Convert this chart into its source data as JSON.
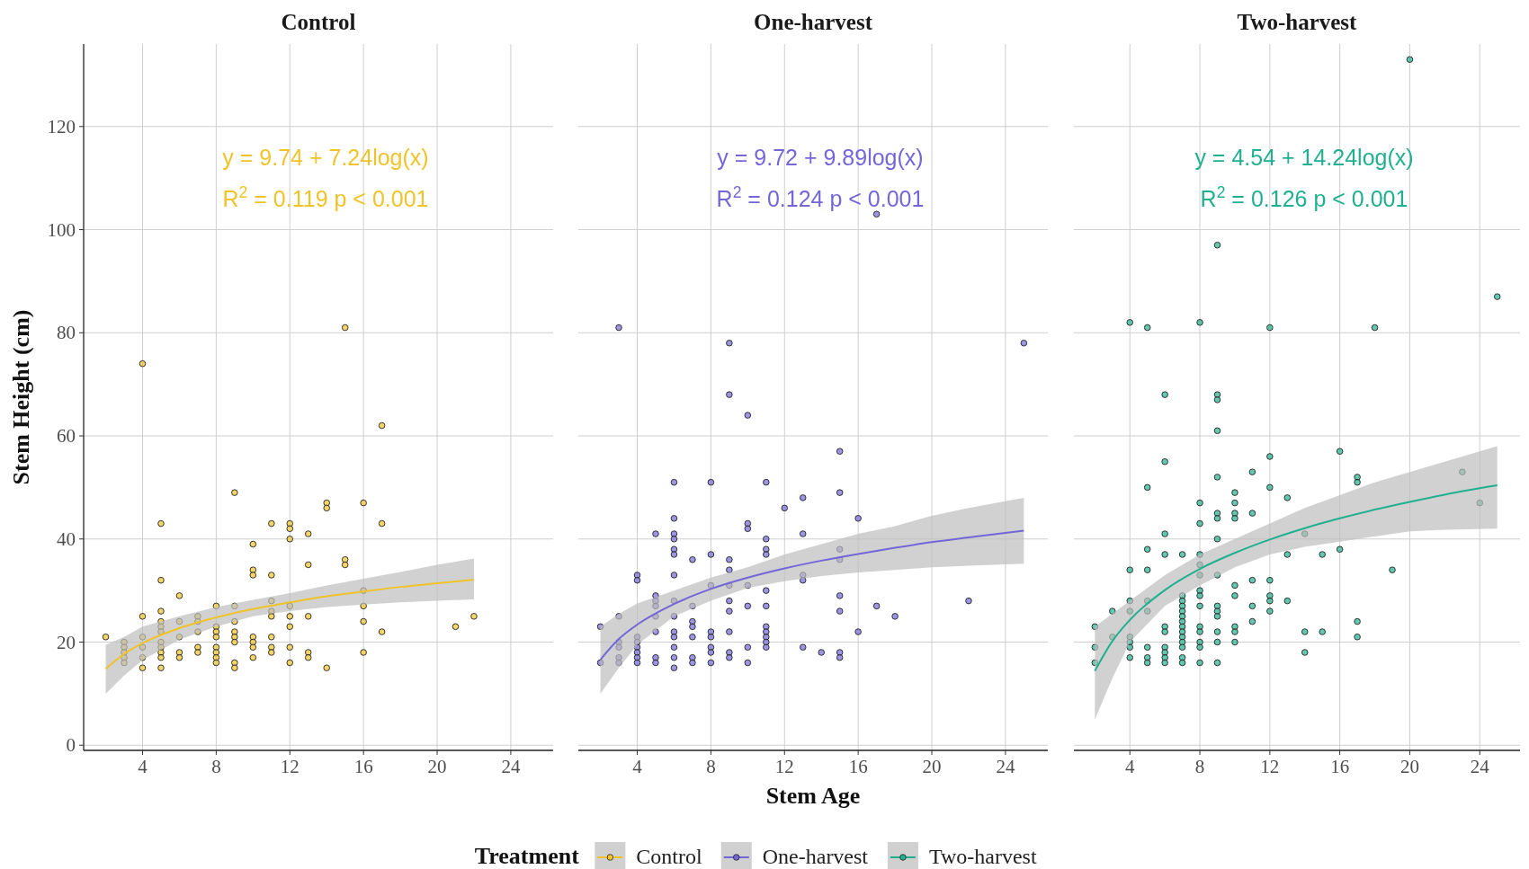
{
  "chart_data": [
    {
      "type": "scatter",
      "title": "Control",
      "ylabel": "Stem Height (cm)",
      "xlim": [
        0.8,
        26.3
      ],
      "xticks": [
        4,
        8,
        12,
        16,
        20,
        24
      ],
      "ylim": [
        -1,
        136
      ],
      "yticks": [
        0,
        20,
        40,
        60,
        80,
        100,
        120
      ],
      "grid": true,
      "marker": "circle",
      "legend": "bottom",
      "legend_title": "Treatment",
      "annotations": [
        "y = 9.74 + 7.24log(x)",
        "R$^{2}$ = 0.119 p < 0.001"
      ],
      "series": [
        {
          "name": "Control",
          "color": "#f0c32a",
          "x": [
            2,
            3,
            3,
            3,
            3,
            3,
            4,
            4,
            4,
            4,
            4,
            4,
            5,
            5,
            5,
            5,
            5,
            5,
            5,
            5,
            5,
            5,
            5,
            6,
            6,
            6,
            6,
            6,
            7,
            7,
            7,
            7,
            7,
            8,
            8,
            8,
            8,
            8,
            8,
            8,
            8,
            9,
            9,
            9,
            9,
            9,
            9,
            9,
            9,
            10,
            10,
            10,
            10,
            10,
            10,
            10,
            11,
            11,
            11,
            11,
            11,
            11,
            11,
            11,
            12,
            12,
            12,
            12,
            12,
            12,
            12,
            12,
            13,
            13,
            13,
            13,
            13,
            14,
            14,
            14,
            15,
            15,
            15,
            16,
            16,
            16,
            16,
            16,
            17,
            17,
            17,
            21,
            22
          ],
          "values": [
            21,
            20,
            19,
            18,
            17,
            16,
            74,
            25,
            21,
            19,
            17,
            15,
            43,
            32,
            26,
            24,
            23,
            22,
            20,
            19,
            18,
            17,
            15,
            29,
            24,
            21,
            18,
            17,
            25,
            24,
            22,
            19,
            18,
            27,
            23,
            22,
            21,
            19,
            18,
            17,
            16,
            49,
            27,
            24,
            22,
            21,
            20,
            16,
            15,
            39,
            34,
            33,
            21,
            20,
            19,
            17,
            43,
            33,
            28,
            26,
            25,
            21,
            19,
            18,
            43,
            42,
            40,
            27,
            25,
            23,
            19,
            16,
            41,
            35,
            25,
            18,
            17,
            47,
            46,
            15,
            81,
            36,
            35,
            47,
            30,
            27,
            24,
            18,
            62,
            43,
            22,
            23,
            25
          ]
        },
        {
          "type": "line",
          "marker": "none",
          "color": "#f0c32a",
          "x": [
            2,
            3,
            4,
            6,
            8,
            10,
            12,
            14,
            16,
            18,
            20,
            22
          ],
          "values": [
            14.8,
            17.7,
            19.8,
            22.7,
            24.8,
            26.4,
            27.7,
            28.9,
            29.8,
            30.7,
            31.4,
            32.1
          ],
          "lower": [
            10,
            13.5,
            16.5,
            20.5,
            23,
            25,
            26,
            26.8,
            27.3,
            27.7,
            28,
            28.3
          ],
          "upper": [
            19.5,
            21,
            23,
            25,
            26.8,
            28.2,
            29.5,
            31,
            32.3,
            33.6,
            35,
            36.2
          ]
        }
      ]
    },
    {
      "type": "scatter",
      "title": "One-harvest",
      "xlabel": "Stem Age",
      "xlim": [
        0.8,
        26.3
      ],
      "xticks": [
        4,
        8,
        12,
        16,
        20,
        24
      ],
      "ylim": [
        -1,
        136
      ],
      "yticks": [
        0,
        20,
        40,
        60,
        80,
        100,
        120
      ],
      "tick_labels": "x",
      "grid": true,
      "marker": "circle",
      "annotations": [
        "y = 9.72 + 9.89log(x)",
        "R$^{2}$ = 0.124 p < 0.001"
      ],
      "series": [
        {
          "name": "One-harvest",
          "color": "#7466d9",
          "x": [
            2,
            2,
            3,
            3,
            3,
            3,
            3,
            3,
            4,
            4,
            4,
            4,
            4,
            4,
            4,
            4,
            5,
            5,
            5,
            5,
            5,
            5,
            5,
            5,
            6,
            6,
            6,
            6,
            6,
            6,
            6,
            6,
            6,
            6,
            6,
            6,
            6,
            6,
            7,
            7,
            7,
            7,
            7,
            7,
            7,
            8,
            8,
            8,
            8,
            8,
            8,
            8,
            8,
            9,
            9,
            9,
            9,
            9,
            9,
            9,
            9,
            9,
            9,
            10,
            10,
            10,
            10,
            10,
            10,
            10,
            11,
            11,
            11,
            11,
            11,
            11,
            11,
            11,
            11,
            11,
            11,
            12,
            13,
            13,
            13,
            13,
            13,
            14,
            15,
            15,
            15,
            15,
            15,
            15,
            15,
            15,
            16,
            16,
            17,
            17,
            18,
            22,
            25
          ],
          "values": [
            23,
            16,
            81,
            25,
            20,
            19,
            17,
            16,
            33,
            32,
            21,
            20,
            19,
            18,
            17,
            16,
            41,
            29,
            28,
            27,
            25,
            22,
            17,
            16,
            51,
            44,
            41,
            40,
            38,
            37,
            33,
            28,
            25,
            22,
            21,
            19,
            17,
            15,
            36,
            27,
            24,
            23,
            21,
            17,
            16,
            51,
            37,
            31,
            22,
            21,
            19,
            18,
            16,
            78,
            68,
            36,
            34,
            31,
            28,
            26,
            22,
            18,
            17,
            64,
            43,
            42,
            31,
            27,
            19,
            16,
            51,
            40,
            38,
            37,
            30,
            27,
            23,
            22,
            21,
            20,
            19,
            46,
            48,
            41,
            33,
            32,
            19,
            18,
            57,
            49,
            38,
            36,
            29,
            26,
            18,
            17,
            44,
            22,
            103,
            27,
            25,
            28,
            78
          ]
        },
        {
          "type": "line",
          "marker": "none",
          "color": "#7466d9",
          "x": [
            2,
            3,
            4,
            6,
            8,
            10,
            12,
            14,
            16,
            18,
            20,
            22,
            25
          ],
          "values": [
            16.6,
            20.6,
            23.4,
            27.4,
            30.3,
            32.5,
            34.3,
            35.8,
            37.1,
            38.3,
            39.4,
            40.3,
            41.6
          ],
          "lower": [
            10,
            15,
            19.5,
            25,
            28,
            30.5,
            31.8,
            32.8,
            33.5,
            34,
            34.5,
            34.8,
            35.2
          ],
          "upper": [
            23,
            25.5,
            27.5,
            30,
            32.5,
            34.5,
            37,
            39,
            41,
            42.5,
            44.5,
            46,
            48
          ]
        }
      ]
    },
    {
      "type": "scatter",
      "title": "Two-harvest",
      "xlim": [
        0.8,
        26.3
      ],
      "xticks": [
        4,
        8,
        12,
        16,
        20,
        24
      ],
      "ylim": [
        -1,
        136
      ],
      "yticks": [
        0,
        20,
        40,
        60,
        80,
        100,
        120
      ],
      "tick_labels": "x",
      "grid": true,
      "marker": "circle",
      "annotations": [
        "y = 4.54 + 14.24log(x)",
        "R$^{2}$ = 0.126 p < 0.001"
      ],
      "series": [
        {
          "name": "Two-harvest",
          "color": "#21b08f",
          "x": [
            2,
            2,
            2,
            3,
            3,
            4,
            4,
            4,
            4,
            4,
            4,
            4,
            4,
            5,
            5,
            5,
            5,
            5,
            5,
            5,
            5,
            5,
            6,
            6,
            6,
            6,
            6,
            6,
            6,
            6,
            6,
            6,
            7,
            7,
            7,
            7,
            7,
            7,
            7,
            7,
            7,
            7,
            7,
            7,
            7,
            7,
            8,
            8,
            8,
            8,
            8,
            8,
            8,
            8,
            8,
            8,
            8,
            8,
            8,
            8,
            9,
            9,
            9,
            9,
            9,
            9,
            9,
            9,
            9,
            9,
            9,
            9,
            9,
            9,
            9,
            10,
            10,
            10,
            10,
            10,
            10,
            10,
            10,
            10,
            11,
            11,
            11,
            11,
            11,
            12,
            12,
            12,
            12,
            12,
            12,
            12,
            13,
            13,
            13,
            14,
            14,
            14,
            15,
            15,
            16,
            16,
            17,
            17,
            17,
            17,
            18,
            19,
            20,
            23,
            24,
            25
          ],
          "values": [
            23,
            19,
            16,
            26,
            21,
            82,
            34,
            28,
            26,
            21,
            20,
            19,
            17,
            81,
            50,
            38,
            34,
            28,
            26,
            19,
            17,
            16,
            68,
            55,
            41,
            37,
            23,
            22,
            19,
            18,
            17,
            16,
            37,
            29,
            28,
            27,
            26,
            25,
            24,
            23,
            22,
            21,
            20,
            19,
            17,
            16,
            82,
            47,
            43,
            37,
            35,
            33,
            30,
            29,
            27,
            23,
            22,
            20,
            19,
            16,
            97,
            68,
            67,
            61,
            52,
            45,
            44,
            40,
            33,
            27,
            26,
            25,
            22,
            20,
            16,
            49,
            47,
            45,
            44,
            31,
            29,
            23,
            22,
            20,
            53,
            45,
            32,
            27,
            24,
            81,
            56,
            50,
            32,
            29,
            28,
            26,
            48,
            37,
            28,
            41,
            22,
            18,
            37,
            22,
            57,
            38,
            52,
            51,
            24,
            21,
            81,
            34,
            133,
            53,
            47,
            87
          ]
        },
        {
          "type": "line",
          "marker": "none",
          "color": "#21b08f",
          "x": [
            2,
            3,
            4,
            6,
            8,
            10,
            12,
            14,
            16,
            18,
            20,
            22,
            25
          ],
          "values": [
            14.4,
            20.2,
            24.3,
            30.1,
            34.2,
            37.3,
            39.9,
            42.1,
            44,
            45.7,
            47.2,
            48.6,
            50.4
          ],
          "lower": [
            5,
            13,
            20,
            27,
            31,
            34.5,
            37,
            38.5,
            39.5,
            40.5,
            41.5,
            41.8,
            42
          ],
          "upper": [
            23,
            25.5,
            28,
            33,
            37,
            40,
            43,
            46,
            48.5,
            51,
            53,
            55,
            58
          ]
        }
      ]
    }
  ]
}
